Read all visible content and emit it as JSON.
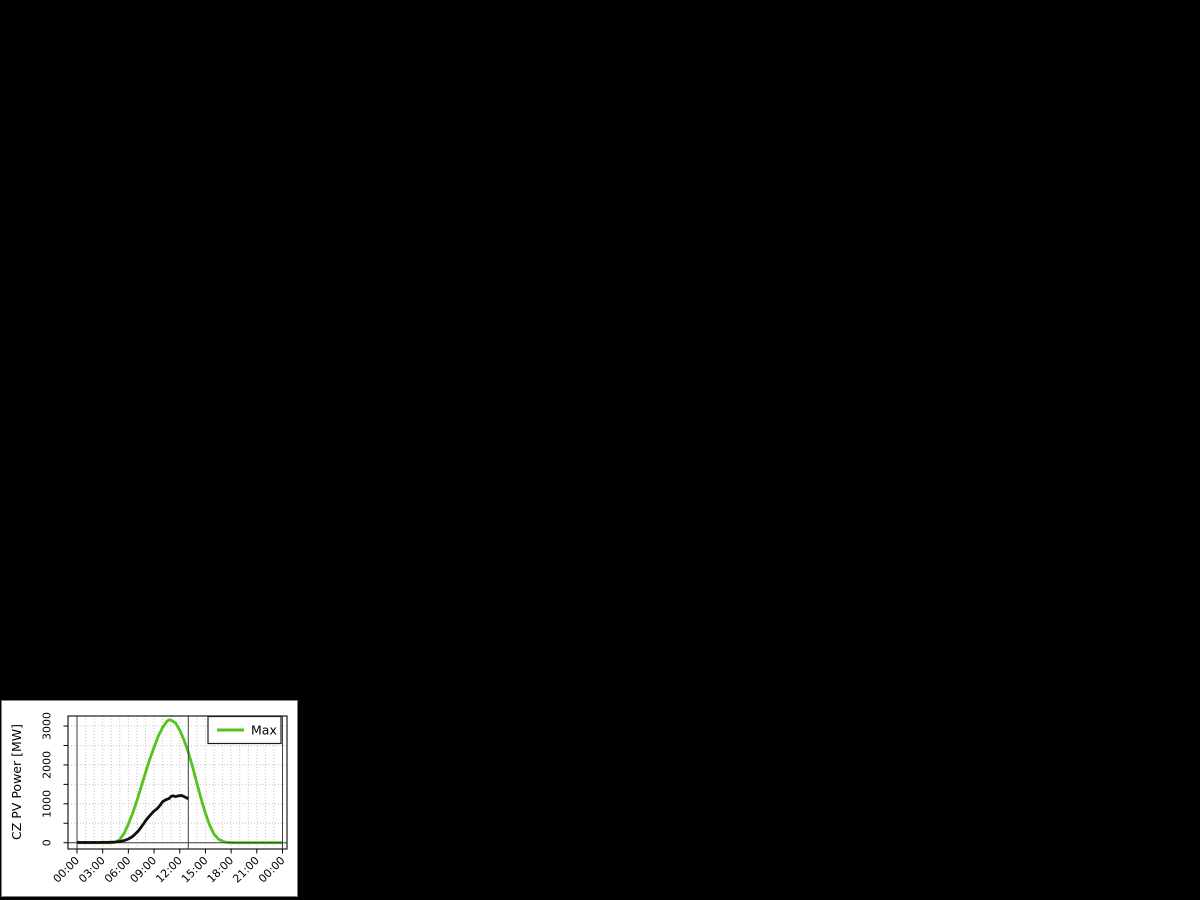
{
  "window": {
    "background_color": "#000000",
    "panel_background_color": "#ffffff",
    "panel_border_color": "#808080"
  },
  "chart_data": {
    "type": "line",
    "title": "",
    "xlabel": "",
    "ylabel": "CZ PV Power [MW]",
    "x_unit": "hour of day",
    "xlim_hours": [
      -1.1,
      24.6
    ],
    "ylim": [
      -130,
      3330
    ],
    "grid": {
      "enabled": true,
      "style": "dotted",
      "color": "#c4c4c4",
      "x_every_hours": 1,
      "y_every_mw": 500
    },
    "axis": {
      "x_ticks_hours": [
        0,
        3,
        6,
        9,
        12,
        15,
        18,
        21,
        24
      ],
      "x_tick_labels": [
        "00:00",
        "03:00",
        "06:00",
        "09:00",
        "12:00",
        "15:00",
        "18:00",
        "21:00",
        "00:00"
      ],
      "x_tick_label_rotation_deg": 45,
      "y_ticks": [
        0,
        500,
        1000,
        1500,
        2000,
        2500,
        3000
      ],
      "y_labeled_ticks": [
        0,
        1000,
        2000,
        3000
      ],
      "y_tick_labels": [
        "0",
        "1000",
        "2000",
        "3000"
      ],
      "box_color": "#1a1a1a"
    },
    "reference_lines": {
      "color": "#3f3f3f",
      "vertical_hours": [
        0,
        13,
        24
      ],
      "horizontal_mw": [
        0
      ]
    },
    "legend": {
      "position": "topright",
      "border_color": "#1a1a1a",
      "background": "#ffffff",
      "entries": [
        {
          "label": "Max",
          "color": "#52c41a"
        }
      ]
    },
    "series": [
      {
        "name": "Max",
        "in_legend": true,
        "color": "#52c41a",
        "width": 2.8,
        "x": [
          0,
          1,
          2,
          3,
          4,
          4.5,
          5,
          5.5,
          6,
          6.5,
          7,
          7.5,
          8,
          8.5,
          9,
          9.5,
          10,
          10.5,
          10.75,
          11,
          11.5,
          12,
          12.5,
          13,
          13.5,
          14,
          14.5,
          15,
          15.5,
          16,
          16.5,
          17,
          17.5,
          18,
          19,
          20,
          21,
          22,
          23,
          24
        ],
        "y": [
          0,
          0,
          0,
          0,
          0,
          15,
          80,
          240,
          480,
          760,
          1080,
          1440,
          1800,
          2150,
          2450,
          2740,
          2960,
          3120,
          3160,
          3150,
          3080,
          2890,
          2640,
          2330,
          1950,
          1530,
          1120,
          760,
          450,
          220,
          95,
          35,
          10,
          0,
          0,
          0,
          0,
          0,
          0,
          0
        ]
      },
      {
        "name": "",
        "in_legend": false,
        "color": "#111111",
        "width": 2.8,
        "x": [
          0,
          0.5,
          1,
          1.5,
          2,
          2.5,
          3,
          3.5,
          4,
          4.5,
          5,
          5.5,
          6,
          6.25,
          6.5,
          6.75,
          7,
          7.25,
          7.5,
          7.75,
          8,
          8.25,
          8.5,
          8.75,
          9,
          9.25,
          9.5,
          9.75,
          10,
          10.25,
          10.5,
          10.75,
          11,
          11.25,
          11.5,
          11.75,
          12,
          12.25,
          12.5,
          12.75,
          13
        ],
        "y": [
          8,
          5,
          8,
          5,
          8,
          6,
          10,
          8,
          12,
          18,
          30,
          55,
          95,
          125,
          165,
          210,
          265,
          330,
          400,
          480,
          560,
          630,
          695,
          755,
          815,
          855,
          905,
          975,
          1055,
          1090,
          1115,
          1135,
          1190,
          1205,
          1185,
          1200,
          1210,
          1215,
          1185,
          1160,
          1130
        ]
      }
    ]
  }
}
